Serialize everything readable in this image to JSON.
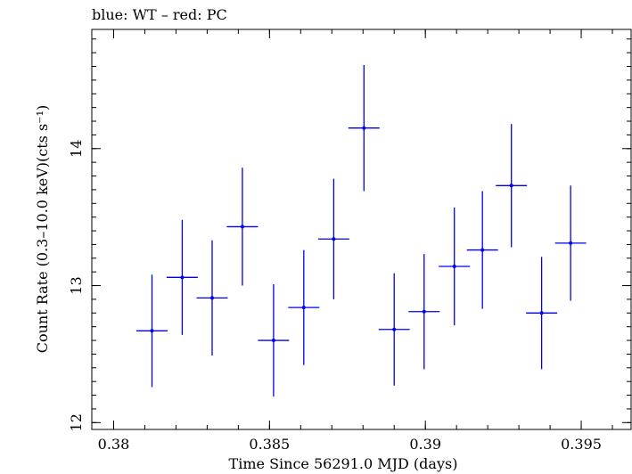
{
  "chart_data": {
    "type": "scatter",
    "title": "blue: WT – red: PC",
    "xlabel": "Time Since 56291.0 MJD (days)",
    "ylabel": "Count Rate (0.3–10.0 keV)(cts s⁻¹)",
    "xlim": [
      0.3793,
      0.3966
    ],
    "ylim": [
      11.95,
      14.87
    ],
    "x_ticks": [
      {
        "value": 0.38,
        "label": "0.38"
      },
      {
        "value": 0.385,
        "label": "0.385"
      },
      {
        "value": 0.39,
        "label": "0.39"
      },
      {
        "value": 0.395,
        "label": "0.395"
      }
    ],
    "y_ticks": [
      {
        "value": 12,
        "label": "12"
      },
      {
        "value": 13,
        "label": "13"
      },
      {
        "value": 14,
        "label": "14"
      }
    ],
    "grid": false,
    "series": [
      {
        "color": "#0000ee",
        "points": [
          {
            "x": 0.38123,
            "y": 12.67,
            "xerr": 0.0005,
            "yerr": 0.41
          },
          {
            "x": 0.3822,
            "y": 13.06,
            "xerr": 0.0005,
            "yerr": 0.42
          },
          {
            "x": 0.38316,
            "y": 12.91,
            "xerr": 0.0005,
            "yerr": 0.42
          },
          {
            "x": 0.38413,
            "y": 13.43,
            "xerr": 0.0005,
            "yerr": 0.43
          },
          {
            "x": 0.38513,
            "y": 12.6,
            "xerr": 0.0005,
            "yerr": 0.41
          },
          {
            "x": 0.3861,
            "y": 12.84,
            "xerr": 0.0005,
            "yerr": 0.42
          },
          {
            "x": 0.38706,
            "y": 13.34,
            "xerr": 0.0005,
            "yerr": 0.44
          },
          {
            "x": 0.38803,
            "y": 14.15,
            "xerr": 0.0005,
            "yerr": 0.46
          },
          {
            "x": 0.389,
            "y": 12.68,
            "xerr": 0.0005,
            "yerr": 0.41
          },
          {
            "x": 0.38996,
            "y": 12.81,
            "xerr": 0.0005,
            "yerr": 0.42
          },
          {
            "x": 0.39093,
            "y": 13.14,
            "xerr": 0.0005,
            "yerr": 0.43
          },
          {
            "x": 0.39183,
            "y": 13.26,
            "xerr": 0.0005,
            "yerr": 0.43
          },
          {
            "x": 0.39276,
            "y": 13.73,
            "xerr": 0.0005,
            "yerr": 0.45
          },
          {
            "x": 0.39373,
            "y": 12.8,
            "xerr": 0.0005,
            "yerr": 0.41
          },
          {
            "x": 0.39466,
            "y": 13.31,
            "xerr": 0.0005,
            "yerr": 0.42
          }
        ]
      }
    ]
  }
}
